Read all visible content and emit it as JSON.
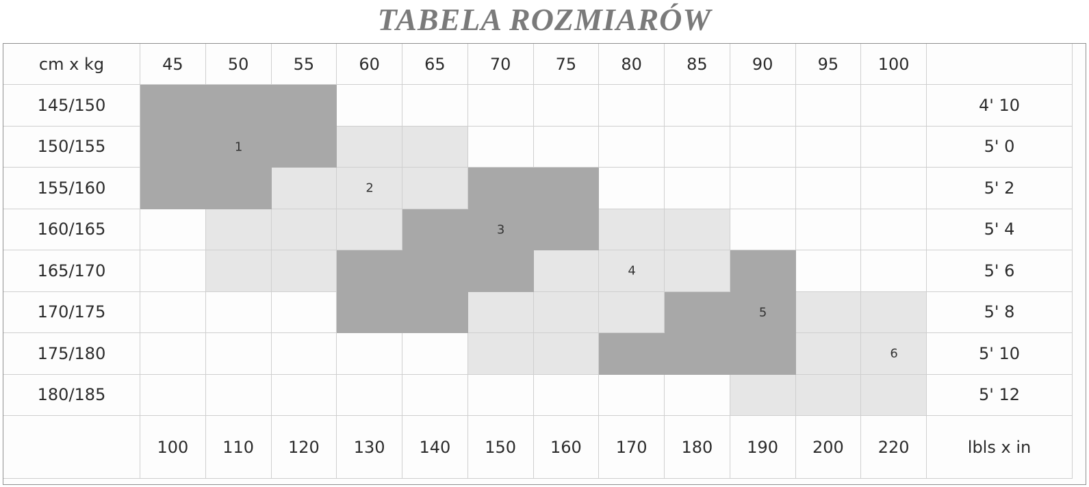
{
  "title": "TABELA ROZMIARÓW",
  "corner_label": "cm x kg",
  "weights_kg": [
    "45",
    "50",
    "55",
    "60",
    "65",
    "70",
    "75",
    "80",
    "85",
    "90",
    "95",
    "100"
  ],
  "heights_cm": [
    "145/150",
    "150/155",
    "155/160",
    "160/165",
    "165/170",
    "170/175",
    "175/180",
    "180/185"
  ],
  "heights_ft_in": [
    "4' 10",
    "5' 0",
    "5' 2",
    "5' 4",
    "5' 6",
    "5' 8",
    "5' 10",
    "5' 12"
  ],
  "weights_lbs": [
    "100",
    "110",
    "120",
    "130",
    "140",
    "150",
    "160",
    "170",
    "180",
    "190",
    "200",
    "220"
  ],
  "imperial_label": "lbls x in",
  "colors": {
    "dark": "#a8a8a8",
    "light": "#e6e6e6",
    "title": "#7a7a7a"
  },
  "grid": [
    [
      "d",
      "d",
      "d",
      "",
      "",
      "",
      "",
      "",
      "",
      "",
      "",
      ""
    ],
    [
      "d",
      "d",
      "d",
      "l",
      "l",
      "",
      "",
      "",
      "",
      "",
      "",
      ""
    ],
    [
      "d",
      "d",
      "l",
      "l",
      "l",
      "d",
      "d",
      "",
      "",
      "",
      "",
      ""
    ],
    [
      "",
      "l",
      "l",
      "l",
      "d",
      "d",
      "d",
      "l",
      "l",
      "",
      "",
      ""
    ],
    [
      "",
      "l",
      "l",
      "d",
      "d",
      "d",
      "l",
      "l",
      "l",
      "d",
      "",
      ""
    ],
    [
      "",
      "",
      "",
      "d",
      "d",
      "l",
      "l",
      "l",
      "d",
      "d",
      "l",
      "l"
    ],
    [
      "",
      "",
      "",
      "",
      "",
      "l",
      "l",
      "d",
      "d",
      "d",
      "l",
      "l"
    ],
    [
      "",
      "",
      "",
      "",
      "",
      "",
      "",
      "",
      "",
      "l",
      "l",
      "l"
    ]
  ],
  "zones": [
    {
      "label": "1",
      "row": 1,
      "col": 1
    },
    {
      "label": "2",
      "row": 2,
      "col": 3
    },
    {
      "label": "3",
      "row": 3,
      "col": 5
    },
    {
      "label": "4",
      "row": 4,
      "col": 7
    },
    {
      "label": "5",
      "row": 5,
      "col": 9
    },
    {
      "label": "6",
      "row": 6,
      "col": 11
    }
  ]
}
